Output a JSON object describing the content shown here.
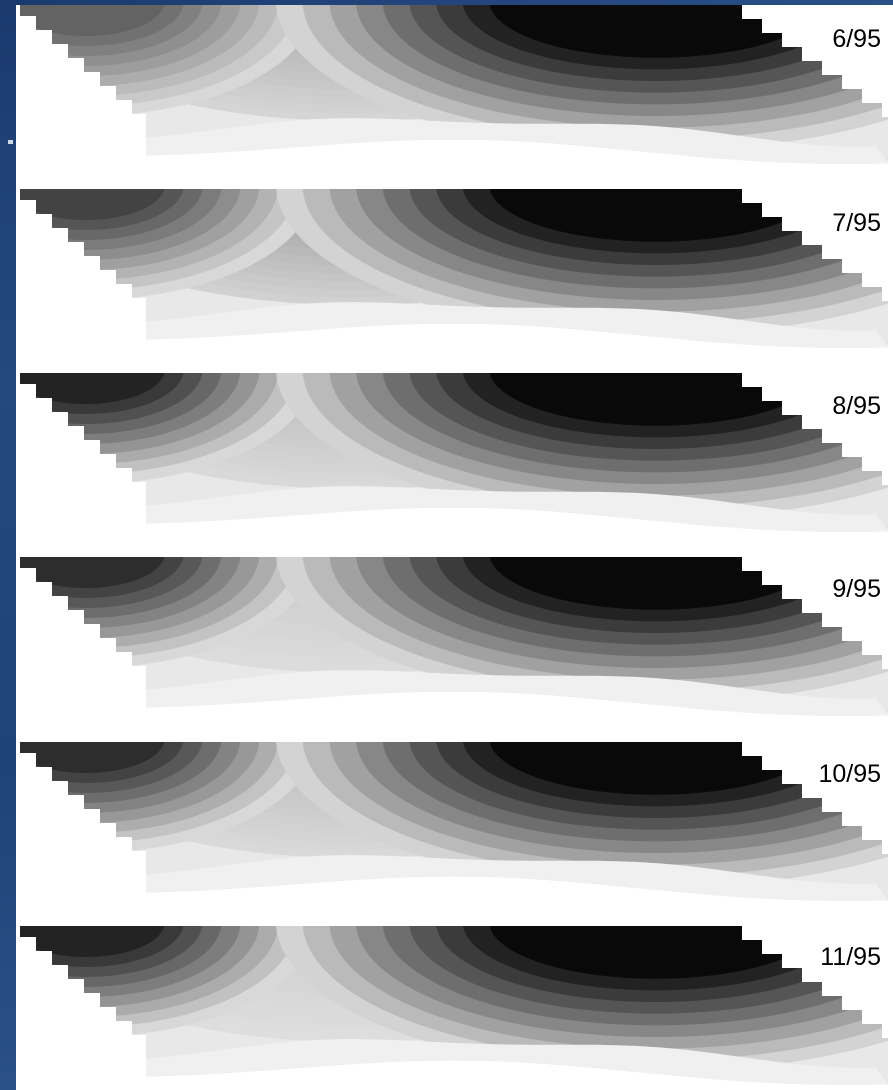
{
  "panels": [
    {
      "id": "p1",
      "label": "6/95",
      "left_dark": 0.55,
      "center_dark": 0.3,
      "right_dark": 1.0
    },
    {
      "id": "p2",
      "label": "7/95",
      "left_dark": 0.7,
      "center_dark": 0.38,
      "right_dark": 1.0
    },
    {
      "id": "p3",
      "label": "8/95",
      "left_dark": 0.85,
      "center_dark": 0.22,
      "right_dark": 1.0
    },
    {
      "id": "p4",
      "label": "9/95",
      "left_dark": 0.8,
      "center_dark": 0.15,
      "right_dark": 1.0
    },
    {
      "id": "p5",
      "label": "10/95",
      "left_dark": 0.8,
      "center_dark": 0.22,
      "right_dark": 1.0
    },
    {
      "id": "p6",
      "label": "11/95",
      "left_dark": 0.85,
      "center_dark": 0.12,
      "right_dark": 1.0
    }
  ],
  "colors": {
    "frame": "#1f4378",
    "background": "#ffffff",
    "label": "#000000"
  }
}
